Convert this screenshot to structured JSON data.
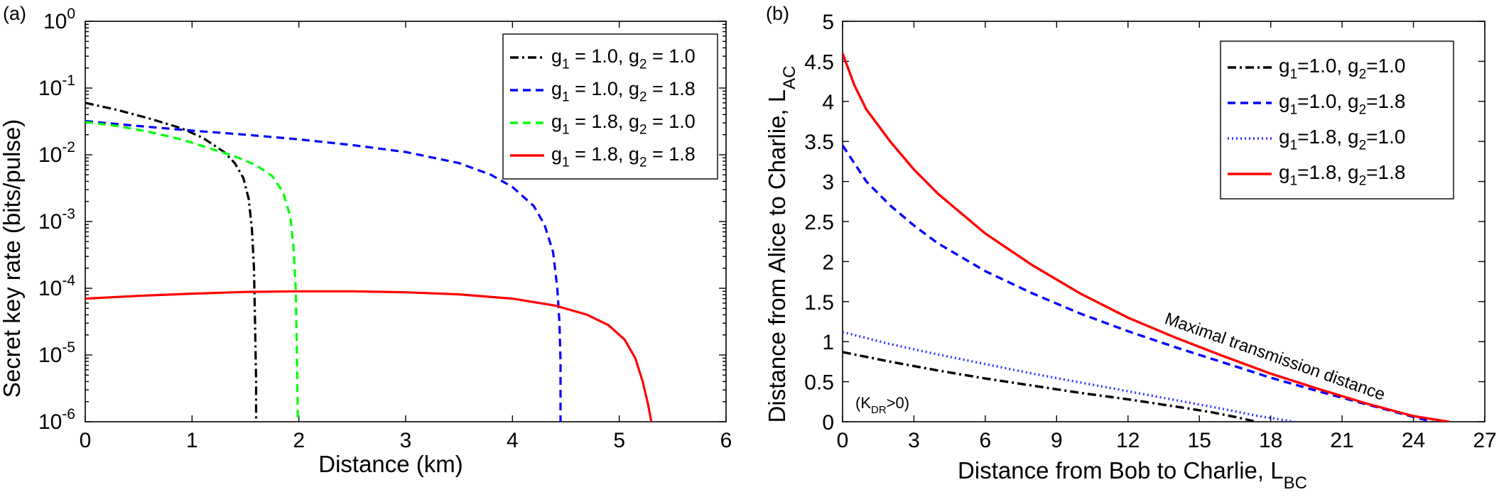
{
  "chart_data": [
    {
      "type": "line",
      "panel_label": "(a)",
      "title": "",
      "xlabel": "Distance (km)",
      "ylabel": "Secret key rate (bits/pulse)",
      "yscale": "log",
      "xlim": [
        0,
        6
      ],
      "ylim_exp": [
        -6,
        0
      ],
      "x_ticks": [
        "0",
        "1",
        "2",
        "3",
        "4",
        "5",
        "6"
      ],
      "y_tick_exponents": [
        "-6",
        "-5",
        "-4",
        "-3",
        "-2",
        "-1",
        "0"
      ],
      "y_tick_base": "10",
      "legend_position": "top-right",
      "series": [
        {
          "name": "g1 = 1.0, g2 = 1.0",
          "legend": {
            "a": "g",
            "s1": "1",
            "b": " = 1.0, g",
            "s2": "2",
            "c": " = 1.0"
          },
          "color": "#000000",
          "style": "dashdot",
          "points": [
            [
              0,
              0.06
            ],
            [
              0.3,
              0.047
            ],
            [
              0.6,
              0.035
            ],
            [
              0.9,
              0.025
            ],
            [
              1.1,
              0.018
            ],
            [
              1.3,
              0.011
            ],
            [
              1.4,
              0.0075
            ],
            [
              1.48,
              0.0045
            ],
            [
              1.53,
              0.0022
            ],
            [
              1.56,
              0.0008
            ],
            [
              1.58,
              0.0002
            ],
            [
              1.59,
              3e-05
            ],
            [
              1.6,
              4e-06
            ],
            [
              1.6,
              1e-06
            ]
          ]
        },
        {
          "name": "g1 = 1.0, g2 = 1.8",
          "legend": {
            "a": "g",
            "s1": "1",
            "b": " = 1.0, g",
            "s2": "2",
            "c": " = 1.8"
          },
          "color": "#0000ff",
          "style": "dashed",
          "points": [
            [
              0,
              0.032
            ],
            [
              0.5,
              0.027
            ],
            [
              1,
              0.023
            ],
            [
              1.5,
              0.02
            ],
            [
              2,
              0.017
            ],
            [
              2.5,
              0.014
            ],
            [
              3,
              0.011
            ],
            [
              3.5,
              0.0075
            ],
            [
              3.8,
              0.005
            ],
            [
              4,
              0.0033
            ],
            [
              4.2,
              0.0017
            ],
            [
              4.3,
              0.0009
            ],
            [
              4.38,
              0.00035
            ],
            [
              4.42,
              0.0001
            ],
            [
              4.44,
              3e-05
            ],
            [
              4.45,
              8e-06
            ],
            [
              4.45,
              1e-06
            ]
          ]
        },
        {
          "name": "g1 = 1.8, g2 = 1.0",
          "legend": {
            "a": "g",
            "s1": "1",
            "b": " = 1.8, g",
            "s2": "2",
            "c": " = 1.0"
          },
          "color": "#00ff00",
          "style": "dashed",
          "points": [
            [
              0,
              0.031
            ],
            [
              0.3,
              0.027
            ],
            [
              0.6,
              0.022
            ],
            [
              0.9,
              0.017
            ],
            [
              1.2,
              0.012
            ],
            [
              1.4,
              0.0095
            ],
            [
              1.6,
              0.007
            ],
            [
              1.75,
              0.0048
            ],
            [
              1.85,
              0.0028
            ],
            [
              1.92,
              0.0012
            ],
            [
              1.95,
              0.0004
            ],
            [
              1.97,
              0.0001
            ],
            [
              1.98,
              1.5e-05
            ],
            [
              1.99,
              1e-06
            ]
          ]
        },
        {
          "name": "g1 = 1.8, g2 = 1.8",
          "legend": {
            "a": "g",
            "s1": "1",
            "b": " = 1.8, g",
            "s2": "2",
            "c": " = 1.8"
          },
          "color": "#ff0000",
          "style": "solid",
          "points": [
            [
              0,
              7e-05
            ],
            [
              0.5,
              7.7e-05
            ],
            [
              1,
              8.3e-05
            ],
            [
              1.5,
              8.8e-05
            ],
            [
              2,
              9e-05
            ],
            [
              2.5,
              9e-05
            ],
            [
              3,
              8.7e-05
            ],
            [
              3.5,
              8.1e-05
            ],
            [
              4,
              7e-05
            ],
            [
              4.4,
              5.5e-05
            ],
            [
              4.7,
              4e-05
            ],
            [
              4.9,
              2.8e-05
            ],
            [
              5.05,
              1.7e-05
            ],
            [
              5.15,
              9e-06
            ],
            [
              5.22,
              4e-06
            ],
            [
              5.27,
              1.8e-06
            ],
            [
              5.3,
              1e-06
            ]
          ]
        }
      ]
    },
    {
      "type": "line",
      "panel_label": "(b)",
      "title": "",
      "xlabel": {
        "main": "Distance from Bob to Charlie, L",
        "sub": "BC"
      },
      "ylabel": {
        "main": "Distance from Alice to Charlie, L",
        "sub": "AC"
      },
      "xlim": [
        0,
        27
      ],
      "ylim": [
        0,
        5
      ],
      "x_ticks": [
        "0",
        "3",
        "6",
        "9",
        "12",
        "15",
        "18",
        "21",
        "24",
        "27"
      ],
      "y_ticks": [
        "0",
        "0.5",
        "1",
        "1.5",
        "2",
        "2.5",
        "3",
        "3.5",
        "4",
        "4.5",
        "5"
      ],
      "legend_position": "top-right",
      "annotations": {
        "curve_label": "Maximal transmission distance",
        "region_label": {
          "main": "(K",
          "sub": "DR",
          "tail": ">0)"
        }
      },
      "series": [
        {
          "name": "g1=1.0, g2=1.0",
          "legend": {
            "a": "g",
            "s1": "1",
            "b": "=1.0, g",
            "s2": "2",
            "c": "=1.0"
          },
          "color": "#000000",
          "style": "dashdot",
          "points": [
            [
              0,
              0.87
            ],
            [
              2,
              0.75
            ],
            [
              4,
              0.64
            ],
            [
              6,
              0.54
            ],
            [
              8,
              0.45
            ],
            [
              10,
              0.36
            ],
            [
              12,
              0.28
            ],
            [
              14,
              0.19
            ],
            [
              15.5,
              0.12
            ],
            [
              16.5,
              0.06
            ],
            [
              17.4,
              0
            ]
          ]
        },
        {
          "name": "g1=1.0, g2=1.8",
          "legend": {
            "a": "g",
            "s1": "1",
            "b": "=1.0, g",
            "s2": "2",
            "c": "=1.8"
          },
          "color": "#0000ff",
          "style": "dashed",
          "points": [
            [
              0,
              3.45
            ],
            [
              1,
              3.0
            ],
            [
              2,
              2.7
            ],
            [
              3,
              2.45
            ],
            [
              4,
              2.23
            ],
            [
              6,
              1.88
            ],
            [
              8,
              1.6
            ],
            [
              10,
              1.35
            ],
            [
              12,
              1.13
            ],
            [
              14,
              0.93
            ],
            [
              16,
              0.74
            ],
            [
              18,
              0.55
            ],
            [
              20,
              0.38
            ],
            [
              22,
              0.22
            ],
            [
              24,
              0.06
            ],
            [
              24.8,
              0
            ]
          ]
        },
        {
          "name": "g1=1.8, g2=1.0",
          "legend": {
            "a": "g",
            "s1": "1",
            "b": "=1.8, g",
            "s2": "2",
            "c": "=1.0"
          },
          "color": "#3333ff",
          "style": "dotted",
          "points": [
            [
              0,
              1.12
            ],
            [
              2,
              0.97
            ],
            [
              4,
              0.84
            ],
            [
              6,
              0.72
            ],
            [
              8,
              0.6
            ],
            [
              10,
              0.49
            ],
            [
              12,
              0.38
            ],
            [
              14,
              0.27
            ],
            [
              16,
              0.16
            ],
            [
              17.5,
              0.07
            ],
            [
              19,
              0
            ]
          ]
        },
        {
          "name": "g1=1.8, g2=1.8",
          "legend": {
            "a": "g",
            "s1": "1",
            "b": "=1.8, g",
            "s2": "2",
            "c": "=1.8"
          },
          "color": "#ff0000",
          "style": "solid",
          "points": [
            [
              0,
              4.6
            ],
            [
              0.5,
              4.2
            ],
            [
              1,
              3.9
            ],
            [
              2,
              3.5
            ],
            [
              3,
              3.15
            ],
            [
              4,
              2.85
            ],
            [
              6,
              2.35
            ],
            [
              8,
              1.95
            ],
            [
              10,
              1.6
            ],
            [
              12,
              1.3
            ],
            [
              14,
              1.05
            ],
            [
              16,
              0.82
            ],
            [
              18,
              0.6
            ],
            [
              20,
              0.41
            ],
            [
              22,
              0.23
            ],
            [
              24,
              0.07
            ],
            [
              25.5,
              0
            ]
          ]
        }
      ]
    }
  ]
}
